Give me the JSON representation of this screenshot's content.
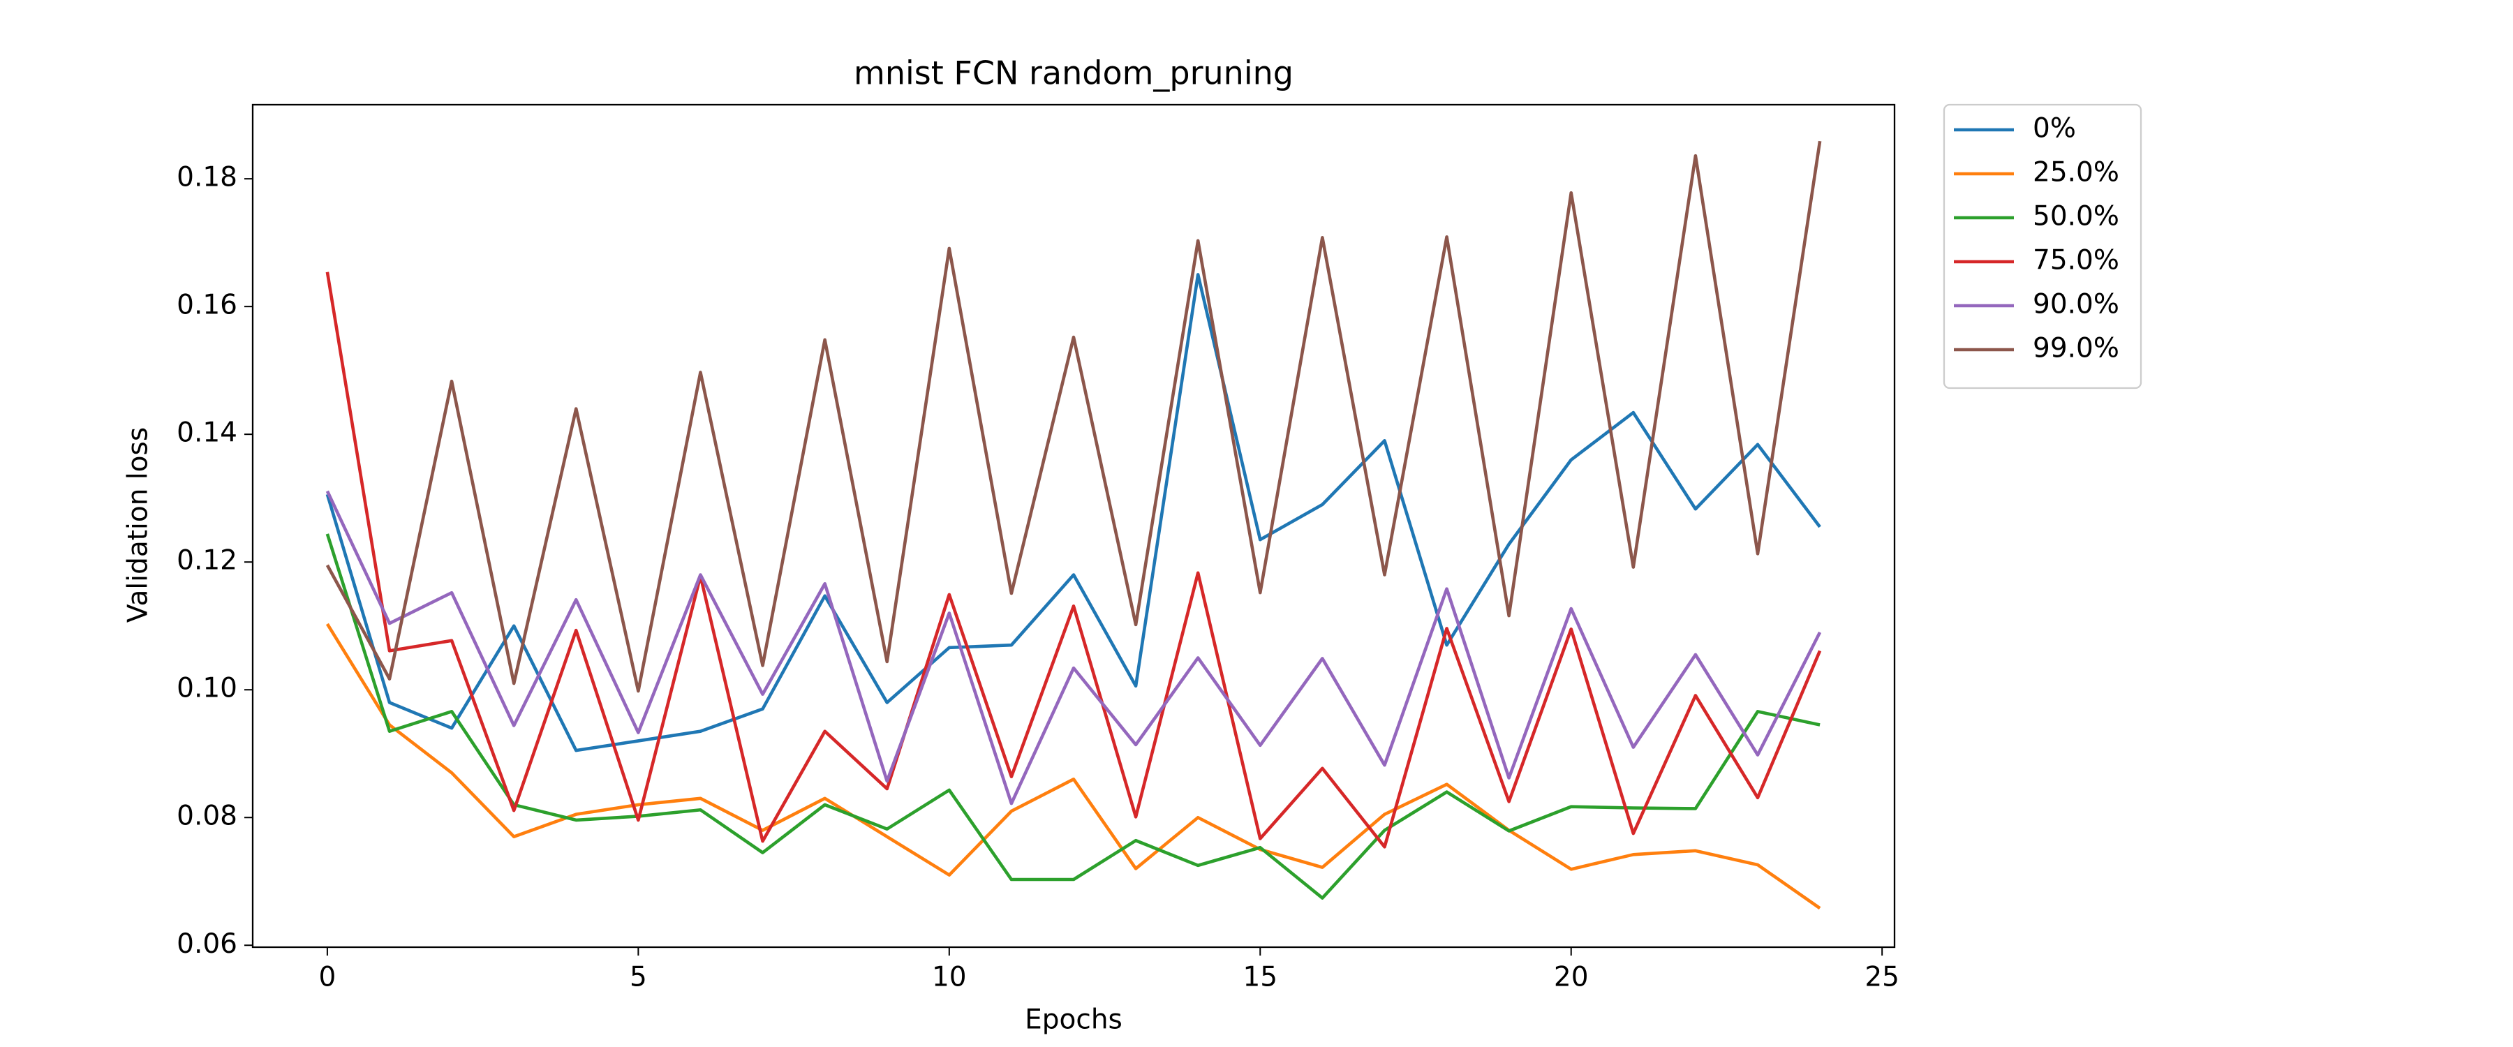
{
  "chart_data": {
    "type": "line",
    "title": "mnist FCN random_pruning",
    "x_label": "Epochs",
    "y_label": "Validation loss",
    "x": [
      0,
      1,
      2,
      3,
      4,
      5,
      6,
      7,
      8,
      9,
      10,
      11,
      12,
      13,
      14,
      15,
      16,
      17,
      18,
      19,
      20,
      21,
      22,
      23,
      24
    ],
    "xlim": [
      -1.2,
      25.2
    ],
    "xticks": [
      0,
      5,
      10,
      15,
      20,
      25
    ],
    "ylim": [
      0.0597,
      0.1916
    ],
    "yticks": [
      0.06,
      0.08,
      {
        "value": 0.1,
        "label": "0.10"
      },
      0.12,
      0.14,
      0.16,
      0.18
    ],
    "grid": false,
    "legend_loc": "outside upper right",
    "series": [
      {
        "name": "0%",
        "color": "#1f77b4",
        "values": [
          0.1306,
          0.098,
          0.094,
          0.11,
          0.0905,
          0.092,
          0.0935,
          0.097,
          0.1147,
          0.098,
          0.1066,
          0.107,
          0.118,
          0.1006,
          0.165,
          0.1235,
          0.129,
          0.139,
          0.107,
          0.1228,
          0.136,
          0.1434,
          0.1283,
          0.1384,
          0.1255
        ]
      },
      {
        "name": "25.0%",
        "color": "#ff7f0e",
        "values": [
          0.1103,
          0.0945,
          0.087,
          0.077,
          0.0805,
          0.082,
          0.083,
          0.078,
          0.083,
          0.077,
          0.071,
          0.081,
          0.086,
          0.072,
          0.08,
          0.075,
          0.0722,
          0.0805,
          0.0852,
          0.078,
          0.0719,
          0.0742,
          0.0748,
          0.0726,
          0.0658
        ]
      },
      {
        "name": "50.0%",
        "color": "#2ca02c",
        "values": [
          0.1244,
          0.0935,
          0.0966,
          0.082,
          0.0796,
          0.0802,
          0.0812,
          0.0745,
          0.082,
          0.0782,
          0.0843,
          0.0703,
          0.0703,
          0.0764,
          0.0725,
          0.0753,
          0.0674,
          0.078,
          0.084,
          0.0779,
          0.0817,
          0.0815,
          0.0814,
          0.0966,
          0.0945
        ]
      },
      {
        "name": "75.0%",
        "color": "#d62728",
        "values": [
          0.1654,
          0.1061,
          0.1077,
          0.0811,
          0.1093,
          0.0796,
          0.1178,
          0.0763,
          0.0935,
          0.0845,
          0.1149,
          0.0864,
          0.1131,
          0.0801,
          0.1183,
          0.0767,
          0.0877,
          0.0754,
          0.1096,
          0.0825,
          0.1095,
          0.0775,
          0.0991,
          0.0831,
          0.1061
        ]
      },
      {
        "name": "90.0%",
        "color": "#9467bd",
        "values": [
          0.1311,
          0.1104,
          0.1152,
          0.0944,
          0.1141,
          0.0933,
          0.118,
          0.0993,
          0.1166,
          0.0857,
          0.112,
          0.0822,
          0.1034,
          0.0914,
          0.105,
          0.0913,
          0.1049,
          0.0882,
          0.1158,
          0.0862,
          0.1127,
          0.091,
          0.1055,
          0.0898,
          0.109
        ]
      },
      {
        "name": "99.0%",
        "color": "#8c564b",
        "values": [
          0.1195,
          0.1017,
          0.1483,
          0.101,
          0.144,
          0.0998,
          0.1497,
          0.1038,
          0.1548,
          0.1044,
          0.1691,
          0.1151,
          0.1552,
          0.1102,
          0.1703,
          0.1152,
          0.1708,
          0.118,
          0.1709,
          0.1116,
          0.1778,
          0.1192,
          0.1836,
          0.1213,
          0.1859
        ]
      }
    ]
  }
}
